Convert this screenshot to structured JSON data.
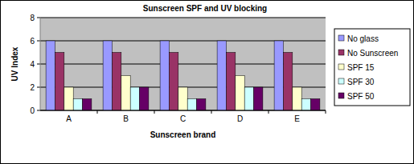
{
  "chart_data": {
    "type": "bar",
    "title": "Sunscreen SPF and UV blocking",
    "x_label": "Sunscreen brand",
    "y_label": "UV Index",
    "categories": [
      "A",
      "B",
      "C",
      "D",
      "E"
    ],
    "series": [
      {
        "name": "No glass",
        "color": "#9999ff",
        "values": [
          6,
          6,
          6,
          6,
          6
        ]
      },
      {
        "name": "No Sunscreen",
        "color": "#993366",
        "values": [
          5,
          5,
          5,
          5,
          5
        ]
      },
      {
        "name": "SPF 15",
        "color": "#ffffcc",
        "values": [
          2,
          3,
          2,
          3,
          2
        ]
      },
      {
        "name": "SPF 30",
        "color": "#ccffff",
        "values": [
          1,
          2,
          1,
          2,
          1
        ]
      },
      {
        "name": "SPF 50",
        "color": "#660066",
        "values": [
          1,
          2,
          1,
          2,
          1
        ]
      }
    ],
    "ylim": [
      0,
      8
    ],
    "yticks": [
      0,
      2,
      4,
      6,
      8
    ],
    "grid": true,
    "legend": "right"
  }
}
